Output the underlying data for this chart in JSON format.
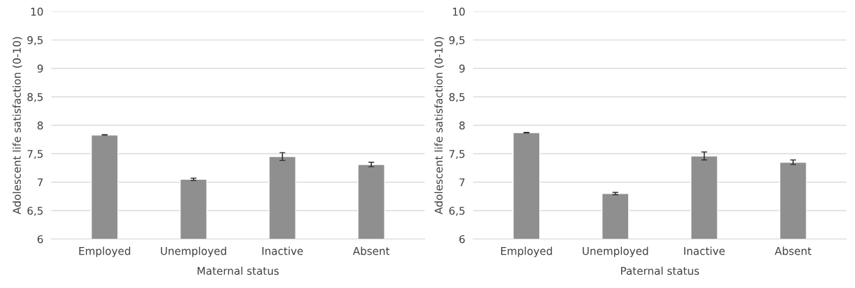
{
  "chart_data": [
    {
      "type": "bar",
      "categories": [
        "Employed",
        "Unemployed",
        "Inactive",
        "Absent"
      ],
      "values": [
        7.83,
        7.05,
        7.45,
        7.31
      ],
      "errors": [
        0.005,
        0.02,
        0.07,
        0.04
      ],
      "color": "#8f8f8f",
      "xlabel": "Maternal status",
      "ylabel": "Adolescent life satisfaction (0-10)",
      "ylim": [
        6,
        10
      ],
      "yticks": [
        6,
        {
          "value": 6.5,
          "label": "6,5"
        },
        7,
        {
          "value": 7.5,
          "label": "7,5"
        },
        8,
        {
          "value": 8.5,
          "label": "8,5"
        },
        9,
        {
          "value": 9.5,
          "label": "9,5"
        },
        10
      ],
      "grid": "y"
    },
    {
      "type": "bar",
      "categories": [
        "Employed",
        "Unemployed",
        "Inactive",
        "Absent"
      ],
      "values": [
        7.87,
        6.8,
        7.46,
        7.35
      ],
      "errors": [
        0.005,
        0.02,
        0.07,
        0.04
      ],
      "color": "#8f8f8f",
      "xlabel": "Paternal status",
      "ylabel": "Adolescent life satisfaction (0-10)",
      "ylim": [
        6,
        10
      ],
      "yticks": [
        6,
        {
          "value": 6.5,
          "label": "6,5"
        },
        7,
        {
          "value": 7.5,
          "label": "7,5"
        },
        8,
        {
          "value": 8.5,
          "label": "8,5"
        },
        9,
        {
          "value": 9.5,
          "label": "9,5"
        },
        10
      ],
      "grid": "y"
    }
  ]
}
